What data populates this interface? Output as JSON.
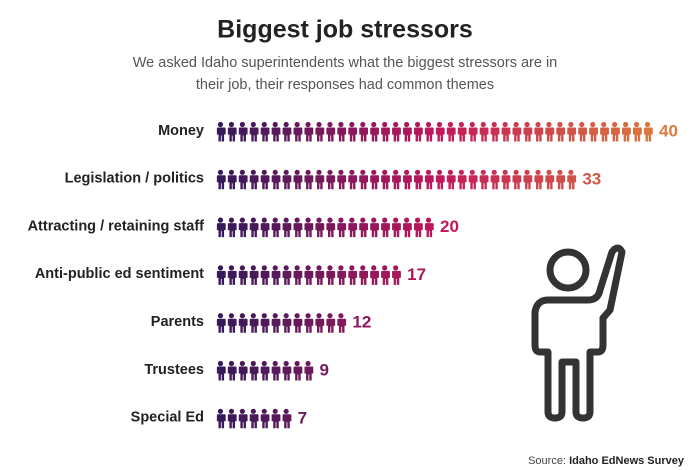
{
  "chart_data": {
    "type": "pictogram",
    "title": "Biggest job stressors",
    "subtitle": "We asked Idaho superintendents what the biggest stressors are in their job, their responses had common themes",
    "categories": [
      "Money",
      "Legislation / politics",
      "Attracting / retaining staff",
      "Anti-public ed sentiment",
      "Parents",
      "Trustees",
      "Special Ed"
    ],
    "values": [
      40,
      33,
      20,
      17,
      12,
      9,
      7
    ],
    "colors": [
      "#35195a",
      "#c2185b",
      "#db7a3a"
    ],
    "source_label": "Source:",
    "source": "Idaho EdNews Survey"
  }
}
